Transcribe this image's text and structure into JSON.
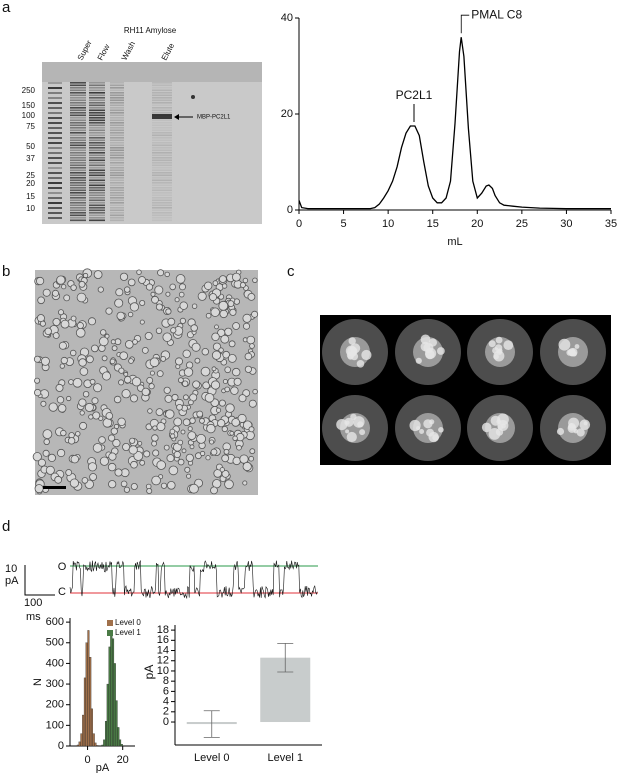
{
  "panel_labels": [
    "a",
    "b",
    "c",
    "d"
  ],
  "gel": {
    "title": "RH11 Amylose",
    "lanes": [
      "Super",
      "Flow",
      "Wash",
      "Elute"
    ],
    "markers": [
      250,
      150,
      100,
      75,
      50,
      37,
      25,
      20,
      15,
      10
    ],
    "band_label": "MBP-PC2L1"
  },
  "trace": {
    "open_label": "O",
    "closed_label": "C",
    "scale_y": [
      "10",
      "pA"
    ],
    "scale_x": [
      "100",
      "ms"
    ]
  },
  "chart_data": [
    {
      "type": "line",
      "xlabel": "mL",
      "x": [
        0,
        0.3,
        1,
        2,
        3,
        4,
        5,
        6,
        7,
        8,
        8.5,
        9,
        9.5,
        10,
        10.5,
        11,
        11.5,
        12,
        12.5,
        13,
        13.5,
        14,
        14.5,
        15,
        15.5,
        16,
        16.5,
        17,
        17.5,
        18,
        18.2,
        18.5,
        19,
        19.5,
        20,
        20.5,
        21,
        21.3,
        21.7,
        22,
        22.5,
        23,
        24,
        25,
        27,
        30,
        35
      ],
      "values": [
        2,
        0.5,
        0.3,
        0.3,
        0.3,
        0.3,
        0.3,
        0.3,
        0.3,
        0.3,
        0.5,
        1.2,
        2.5,
        4,
        6,
        9,
        13,
        16,
        17.5,
        17.5,
        15.5,
        10,
        5,
        2.5,
        1.5,
        1.5,
        2.5,
        6,
        18,
        33,
        36,
        32,
        17,
        6,
        2.5,
        3.5,
        5,
        5.2,
        4.5,
        3,
        1.5,
        1,
        0.8,
        0.6,
        0.4,
        0.3,
        0.3
      ],
      "color": "#000000",
      "xlim": [
        0,
        35
      ],
      "xticks": [
        0,
        5,
        10,
        15,
        20,
        25,
        30,
        35
      ],
      "ylim": [
        0,
        40
      ],
      "yticks": [
        0,
        20,
        40
      ],
      "annotations": [
        {
          "text": "PC2L1",
          "x": 12.9
        },
        {
          "text": "PMAL C8",
          "x": 18.2
        }
      ]
    },
    {
      "type": "histogram",
      "xlabel": "pA",
      "ylabel": "N",
      "bins": [
        -6,
        -5,
        -4,
        -3,
        -2,
        -1,
        0,
        1,
        2,
        3,
        4,
        5,
        6,
        7,
        8,
        9,
        10,
        11,
        12,
        13,
        14,
        15,
        16,
        17,
        18,
        19,
        20
      ],
      "series": [
        {
          "name": "Level 0",
          "color": "#a0704a",
          "values": [
            5,
            20,
            60,
            150,
            330,
            500,
            560,
            430,
            180,
            60,
            15,
            3,
            0,
            0,
            0,
            0,
            0,
            0,
            0,
            0,
            0,
            0,
            0,
            0,
            0,
            0
          ]
        },
        {
          "name": "Level 1",
          "color": "#4a7a45",
          "values": [
            0,
            0,
            0,
            0,
            0,
            0,
            0,
            0,
            0,
            0,
            0,
            0,
            0,
            0,
            5,
            30,
            120,
            300,
            480,
            540,
            520,
            400,
            220,
            90,
            30,
            8
          ]
        }
      ],
      "xlim": [
        -10,
        27
      ],
      "xticks": [
        0,
        20
      ],
      "ylim": [
        0,
        620
      ],
      "yticks": [
        0,
        100,
        200,
        300,
        400,
        500,
        600
      ]
    },
    {
      "type": "bar",
      "ylabel": "pA",
      "categories": [
        "Level 0",
        "Level 1"
      ],
      "values": [
        -0.4,
        12.6
      ],
      "errors": [
        2.6,
        2.8
      ],
      "color": "#c8cccc",
      "ylim": [
        -4.5,
        19
      ],
      "yticks": [
        0,
        2,
        4,
        6,
        8,
        10,
        12,
        14,
        16,
        18
      ]
    }
  ]
}
